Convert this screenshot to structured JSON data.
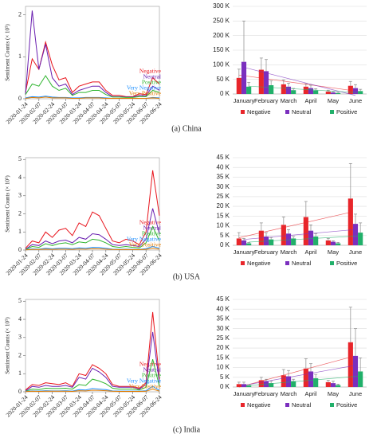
{
  "captions": [
    "(a) China",
    "(b) USA",
    "(c) India"
  ],
  "chart_data": [
    {
      "type": "line",
      "ylabel": "Sentiment Counts (× 10⁵)",
      "categories": [
        "2020-01-24",
        null,
        "2020-02-07",
        null,
        "2020-02-24",
        null,
        "2020-03-07",
        null,
        "2020-03-24",
        null,
        "2020-04-07",
        null,
        "2020-04-24",
        null,
        "2020-05-07",
        null,
        "2020-05-24",
        null,
        "2020-06-07",
        null,
        "2020-06-24"
      ],
      "ylim": [
        0,
        2.2
      ],
      "yticks": [
        0,
        1,
        2
      ],
      "series": [
        {
          "name": "Negative",
          "color": "#e8141c",
          "values": [
            0.15,
            0.95,
            0.7,
            1.35,
            0.8,
            0.45,
            0.5,
            0.15,
            0.3,
            0.35,
            0.4,
            0.4,
            0.2,
            0.08,
            0.08,
            0.05,
            0.05,
            0.12,
            0.1,
            0.5,
            0.35
          ]
        },
        {
          "name": "Neutral",
          "color": "#6a1fb0",
          "values": [
            0.1,
            2.1,
            0.7,
            1.3,
            0.5,
            0.3,
            0.35,
            0.1,
            0.2,
            0.25,
            0.3,
            0.3,
            0.15,
            0.05,
            0.05,
            0.04,
            0.04,
            0.08,
            0.07,
            0.3,
            0.2
          ]
        },
        {
          "name": "Positive",
          "color": "#2fb52f",
          "values": [
            0.1,
            0.35,
            0.3,
            0.55,
            0.3,
            0.2,
            0.25,
            0.08,
            0.15,
            0.15,
            0.2,
            0.2,
            0.1,
            0.04,
            0.04,
            0.03,
            0.03,
            0.05,
            0.05,
            0.2,
            0.15
          ]
        },
        {
          "name": "Very Negative",
          "color": "#1e90ff",
          "values": [
            0.02,
            0.05,
            0.04,
            0.06,
            0.04,
            0.03,
            0.03,
            0.02,
            0.02,
            0.03,
            0.03,
            0.03,
            0.02,
            0.01,
            0.01,
            0.01,
            0.01,
            0.01,
            0.01,
            0.03,
            0.02
          ]
        },
        {
          "name": "Very Positive",
          "color": "#e07b00",
          "values": [
            0.01,
            0.03,
            0.02,
            0.04,
            0.02,
            0.02,
            0.02,
            0.01,
            0.01,
            0.02,
            0.02,
            0.02,
            0.01,
            0.01,
            0.01,
            0.01,
            0.01,
            0.01,
            0.01,
            0.02,
            0.01
          ]
        }
      ]
    },
    {
      "type": "bar",
      "categories": [
        "January",
        "February",
        "March",
        "April",
        "May",
        "June"
      ],
      "ylim": [
        0,
        300
      ],
      "yticks": [
        {
          "value": 0,
          "label": "0 K"
        },
        {
          "value": 50,
          "label": "50 K"
        },
        {
          "value": 100,
          "label": "100 K"
        },
        {
          "value": 150,
          "label": "150 K"
        },
        {
          "value": 200,
          "label": "200 K"
        },
        {
          "value": 250,
          "label": "250 K"
        },
        {
          "value": 300,
          "label": "300 K"
        }
      ],
      "series": [
        {
          "name": "Negative",
          "color": "#e8262b",
          "values": [
            55,
            83,
            33,
            25,
            8,
            28
          ],
          "errors": [
            30,
            40,
            15,
            10,
            5,
            15
          ]
        },
        {
          "name": "Neutral",
          "color": "#7b2fbe",
          "values": [
            110,
            78,
            25,
            20,
            5,
            20
          ],
          "errors": [
            140,
            40,
            12,
            10,
            3,
            12
          ]
        },
        {
          "name": "Positive",
          "color": "#21b06a",
          "values": [
            25,
            30,
            13,
            12,
            3,
            10
          ],
          "errors": [
            15,
            15,
            6,
            6,
            2,
            6
          ]
        }
      ]
    },
    {
      "type": "line",
      "ylabel": "Sentiment Counts (× 10⁵)",
      "categories": [
        "2020-01-24",
        null,
        "2020-02-07",
        null,
        "2020-02-24",
        null,
        "2020-03-07",
        null,
        "2020-03-24",
        null,
        "2020-04-07",
        null,
        "2020-04-24",
        null,
        "2020-05-07",
        null,
        "2020-05-24",
        null,
        "2020-06-07",
        null,
        "2020-06-24"
      ],
      "ylim": [
        0,
        5.1
      ],
      "yticks": [
        0,
        1,
        2,
        3,
        4,
        5
      ],
      "series": [
        {
          "name": "Negative",
          "color": "#e8141c",
          "values": [
            0.1,
            0.5,
            0.4,
            1.0,
            0.7,
            1.1,
            1.2,
            0.8,
            1.5,
            1.3,
            2.1,
            1.9,
            1.2,
            0.5,
            0.4,
            0.6,
            0.5,
            0.3,
            1.0,
            4.4,
            1.9
          ]
        },
        {
          "name": "Neutral",
          "color": "#6a1fb0",
          "values": [
            0.05,
            0.3,
            0.25,
            0.5,
            0.35,
            0.5,
            0.55,
            0.4,
            0.7,
            0.6,
            0.9,
            0.85,
            0.6,
            0.3,
            0.25,
            0.3,
            0.25,
            0.2,
            0.6,
            2.3,
            0.9
          ]
        },
        {
          "name": "Positive",
          "color": "#2fb52f",
          "values": [
            0.03,
            0.2,
            0.15,
            0.35,
            0.25,
            0.35,
            0.4,
            0.3,
            0.45,
            0.4,
            0.6,
            0.55,
            0.4,
            0.2,
            0.15,
            0.2,
            0.15,
            0.12,
            0.4,
            1.3,
            0.5
          ]
        },
        {
          "name": "Very Negative",
          "color": "#1e90ff",
          "values": [
            0.02,
            0.06,
            0.05,
            0.1,
            0.07,
            0.1,
            0.1,
            0.08,
            0.12,
            0.1,
            0.15,
            0.14,
            0.1,
            0.05,
            0.04,
            0.05,
            0.04,
            0.03,
            0.08,
            0.2,
            0.1
          ]
        },
        {
          "name": "Very Positive",
          "color": "#e07b00",
          "values": [
            0.01,
            0.03,
            0.03,
            0.05,
            0.04,
            0.05,
            0.05,
            0.04,
            0.06,
            0.05,
            0.08,
            0.07,
            0.05,
            0.03,
            0.02,
            0.03,
            0.02,
            0.02,
            0.04,
            0.1,
            0.05
          ]
        }
      ]
    },
    {
      "type": "bar",
      "categories": [
        "January",
        "February",
        "March",
        "April",
        "May",
        "June"
      ],
      "ylim": [
        0,
        45
      ],
      "yticks": [
        {
          "value": 0,
          "label": "0 K"
        },
        {
          "value": 5,
          "label": "5 K"
        },
        {
          "value": 10,
          "label": "10 K"
        },
        {
          "value": 15,
          "label": "15 K"
        },
        {
          "value": 20,
          "label": "20 K"
        },
        {
          "value": 25,
          "label": "25 K"
        },
        {
          "value": 30,
          "label": "30 K"
        },
        {
          "value": 35,
          "label": "35 K"
        },
        {
          "value": 40,
          "label": "40 K"
        },
        {
          "value": 45,
          "label": "45 K"
        }
      ],
      "series": [
        {
          "name": "Negative",
          "color": "#e8262b",
          "values": [
            3.5,
            7.5,
            10.5,
            14.5,
            2.5,
            24
          ],
          "errors": [
            3,
            4,
            4,
            8,
            1,
            18
          ]
        },
        {
          "name": "Neutral",
          "color": "#7b2fbe",
          "values": [
            2.5,
            4.5,
            6,
            7.5,
            1.8,
            11
          ],
          "errors": [
            1,
            2,
            2,
            3,
            0.5,
            5
          ]
        },
        {
          "name": "Positive",
          "color": "#21b06a",
          "values": [
            1,
            3,
            3.5,
            4.5,
            1,
            6.5
          ],
          "errors": [
            0.5,
            1,
            1,
            1.5,
            0.5,
            5
          ]
        }
      ]
    },
    {
      "type": "line",
      "ylabel": "Sentiment Counts (× 10⁵)",
      "categories": [
        "2020-01-24",
        null,
        "2020-02-07",
        null,
        "2020-02-24",
        null,
        "2020-03-07",
        null,
        "2020-03-24",
        null,
        "2020-04-07",
        null,
        "2020-04-24",
        null,
        "2020-05-07",
        null,
        "2020-05-24",
        null,
        "2020-06-07",
        null,
        "2020-06-24"
      ],
      "ylim": [
        0,
        5.1
      ],
      "yticks": [
        0,
        1,
        2,
        3,
        4,
        5
      ],
      "series": [
        {
          "name": "Negative",
          "color": "#e8141c",
          "values": [
            0.1,
            0.4,
            0.35,
            0.5,
            0.45,
            0.4,
            0.5,
            0.3,
            1.0,
            0.9,
            1.5,
            1.3,
            1.0,
            0.4,
            0.3,
            0.3,
            0.3,
            0.2,
            0.5,
            4.4,
            0.7
          ]
        },
        {
          "name": "Neutral",
          "color": "#6a1fb0",
          "values": [
            0.05,
            0.3,
            0.25,
            0.35,
            0.3,
            0.3,
            0.35,
            0.25,
            0.8,
            0.7,
            1.3,
            1.1,
            0.8,
            0.3,
            0.25,
            0.25,
            0.25,
            0.15,
            0.4,
            3.3,
            0.5
          ]
        },
        {
          "name": "Positive",
          "color": "#2fb52f",
          "values": [
            0.03,
            0.15,
            0.12,
            0.2,
            0.18,
            0.18,
            0.2,
            0.15,
            0.4,
            0.35,
            0.7,
            0.6,
            0.45,
            0.2,
            0.15,
            0.15,
            0.15,
            0.1,
            0.25,
            1.8,
            0.3
          ]
        },
        {
          "name": "Very Negative",
          "color": "#1e90ff",
          "values": [
            0.02,
            0.05,
            0.04,
            0.06,
            0.05,
            0.05,
            0.06,
            0.04,
            0.12,
            0.1,
            0.18,
            0.15,
            0.12,
            0.05,
            0.04,
            0.04,
            0.04,
            0.03,
            0.06,
            0.3,
            0.08
          ]
        },
        {
          "name": "Very Positive",
          "color": "#e07b00",
          "values": [
            0.01,
            0.03,
            0.02,
            0.03,
            0.03,
            0.03,
            0.03,
            0.02,
            0.06,
            0.05,
            0.09,
            0.08,
            0.06,
            0.03,
            0.02,
            0.02,
            0.02,
            0.02,
            0.03,
            0.15,
            0.04
          ]
        }
      ]
    },
    {
      "type": "bar",
      "categories": [
        "January",
        "February",
        "March",
        "April",
        "May",
        "June"
      ],
      "ylim": [
        0,
        45
      ],
      "yticks": [
        {
          "value": 0,
          "label": "0 K"
        },
        {
          "value": 5,
          "label": "5 K"
        },
        {
          "value": 10,
          "label": "10 K"
        },
        {
          "value": 15,
          "label": "15 K"
        },
        {
          "value": 20,
          "label": "20 K"
        },
        {
          "value": 25,
          "label": "25 K"
        },
        {
          "value": 30,
          "label": "30 K"
        },
        {
          "value": 35,
          "label": "35 K"
        },
        {
          "value": 40,
          "label": "40 K"
        },
        {
          "value": 45,
          "label": "45 K"
        }
      ],
      "series": [
        {
          "name": "Negative",
          "color": "#e8262b",
          "values": [
            1.5,
            3.5,
            6,
            9.5,
            2.5,
            23
          ],
          "errors": [
            1,
            1.5,
            3,
            5,
            1,
            18
          ]
        },
        {
          "name": "Neutral",
          "color": "#7b2fbe",
          "values": [
            1.5,
            3,
            5.5,
            8,
            2,
            16
          ],
          "errors": [
            1,
            1,
            3,
            4,
            1,
            14
          ]
        },
        {
          "name": "Positive",
          "color": "#21b06a",
          "values": [
            0.8,
            2,
            3,
            4.5,
            1,
            8
          ],
          "errors": [
            0.5,
            1,
            1,
            2,
            0.5,
            7
          ]
        }
      ]
    }
  ]
}
